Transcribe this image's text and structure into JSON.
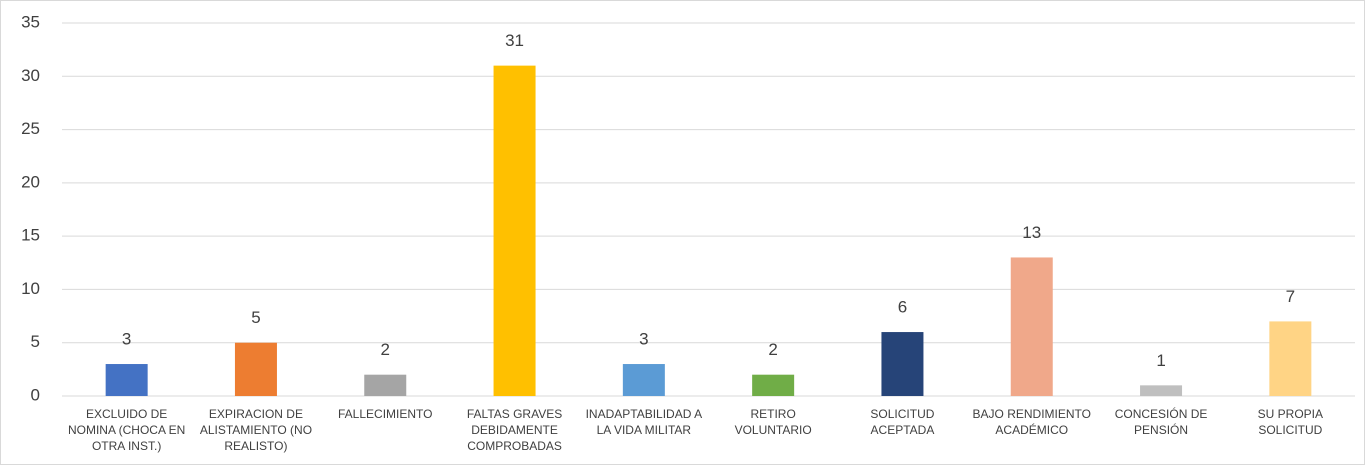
{
  "chart_data": {
    "type": "bar",
    "categories": [
      "EXCLUIDO DE NOMINA (CHOCA EN OTRA INST.)",
      "EXPIRACION DE ALISTAMIENTO (NO REALISTO)",
      "FALLECIMIENTO",
      "FALTAS GRAVES DEBIDAMENTE COMPROBADAS",
      "INADAPTABILIDAD A LA VIDA MILITAR",
      "RETIRO VOLUNTARIO",
      "SOLICITUD ACEPTADA",
      "BAJO RENDIMIENTO ACADÉMICO",
      "CONCESIÓN DE PENSIÓN",
      "SU PROPIA SOLICITUD"
    ],
    "values": [
      3,
      5,
      2,
      31,
      3,
      2,
      6,
      13,
      1,
      7
    ],
    "colors": [
      "#4472c4",
      "#ed7d31",
      "#a5a5a5",
      "#ffc000",
      "#5b9bd5",
      "#70ad47",
      "#264478",
      "#f0a88a",
      "#bfbfbf",
      "#ffd485"
    ],
    "ylim": [
      0,
      35
    ],
    "yticks": [
      0,
      5,
      10,
      15,
      20,
      25,
      30,
      35
    ],
    "grid": true
  }
}
